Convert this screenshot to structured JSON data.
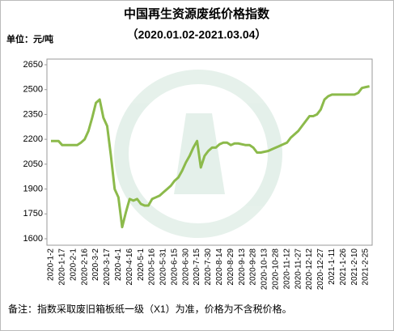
{
  "chart_data": {
    "type": "line",
    "title": "中国再生资源废纸价格指数",
    "subtitle": "（2020.01.02-2021.03.04）",
    "unit_label": "单位：元/吨",
    "note": "备注：指数采取废旧箱板纸一级（X1）为准，价格为不含税价格。",
    "categories": [
      "2020-1-2",
      null,
      null,
      "2020-1-17",
      null,
      null,
      "2020-2-1",
      null,
      null,
      "2020-2-16",
      null,
      null,
      "2020-3-2",
      null,
      null,
      "2020-3-17",
      null,
      null,
      "2020-4-1",
      null,
      null,
      "2020-4-16",
      null,
      null,
      "2020-5-1",
      null,
      null,
      "2020-5-16",
      null,
      null,
      "2020-5-31",
      null,
      null,
      "2020-6-15",
      null,
      null,
      "2020-6-30",
      null,
      null,
      "2020-7-15",
      null,
      null,
      "2020-7-30",
      null,
      null,
      "2020-8-14",
      null,
      null,
      "2020-8-29",
      null,
      null,
      "2020-9-13",
      null,
      null,
      "2020-9-28",
      null,
      null,
      "2020-10-13",
      null,
      null,
      "2020-10-28",
      null,
      null,
      "2020-11-12",
      null,
      null,
      "2020-11-27",
      null,
      null,
      "2020-12-12",
      null,
      null,
      "2020-12-27",
      null,
      null,
      "2021-1-11",
      null,
      null,
      "2021-1-26",
      null,
      null,
      "2021-2-10",
      null,
      null,
      "2021-2-25",
      null
    ],
    "values": [
      2190,
      2190,
      2190,
      2165,
      2165,
      2165,
      2165,
      2165,
      2180,
      2200,
      2250,
      2330,
      2420,
      2440,
      2330,
      2280,
      2100,
      1900,
      1850,
      1670,
      1760,
      1840,
      1830,
      1840,
      1810,
      1800,
      1800,
      1840,
      1850,
      1860,
      1880,
      1900,
      1920,
      1950,
      1970,
      2010,
      2060,
      2100,
      2150,
      2190,
      2030,
      2100,
      2130,
      2150,
      2150,
      2170,
      2180,
      2180,
      2165,
      2175,
      2175,
      2170,
      2165,
      2165,
      2150,
      2120,
      2120,
      2125,
      2130,
      2140,
      2150,
      2160,
      2170,
      2180,
      2210,
      2230,
      2250,
      2280,
      2310,
      2340,
      2340,
      2350,
      2380,
      2440,
      2460,
      2470,
      2470,
      2470,
      2470,
      2470,
      2470,
      2470,
      2480,
      2510,
      2515,
      2520
    ],
    "color": "#8cba4b",
    "ylim": [
      1600,
      2650
    ],
    "yticks": [
      1600,
      1750,
      1900,
      2050,
      2200,
      2350,
      2500,
      2650
    ],
    "grid": false
  }
}
